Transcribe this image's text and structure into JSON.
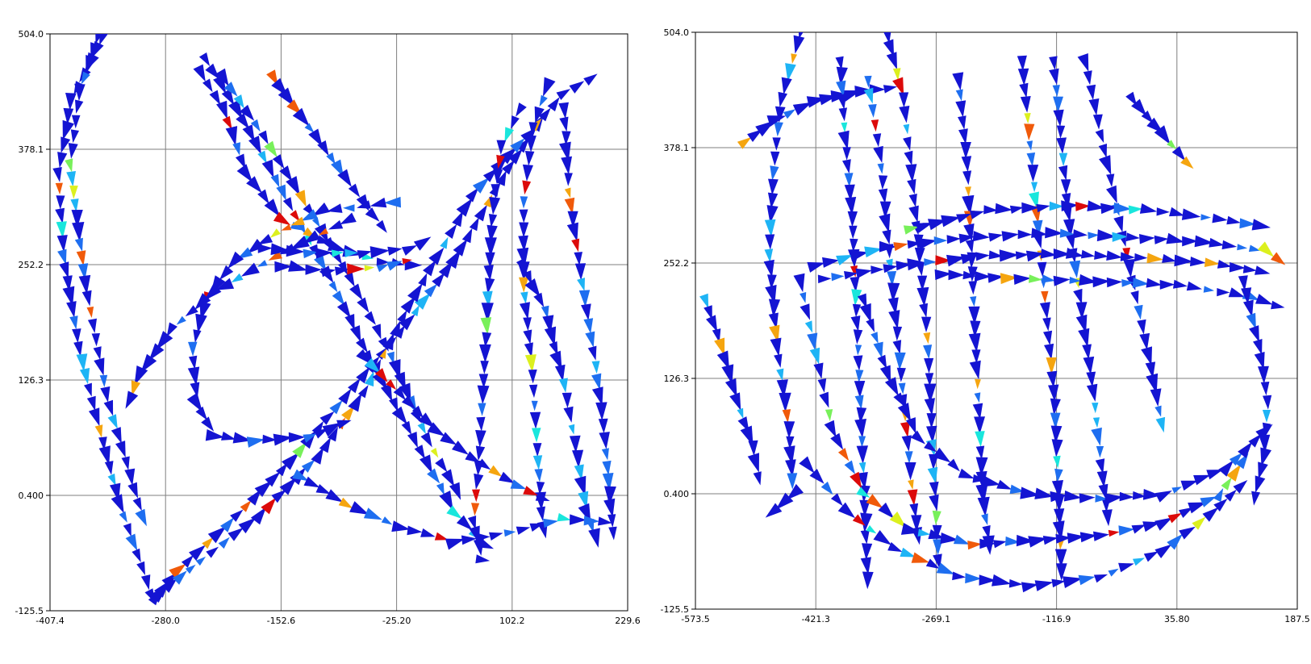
{
  "colors": {
    "background": "#ffffff",
    "grid": "#7f7f7f",
    "axis": "#000000",
    "colormap": [
      "#1414d2",
      "#1e6ef0",
      "#1eb4f5",
      "#19e6dc",
      "#78f05a",
      "#dcf01e",
      "#f5a50f",
      "#f05a0a",
      "#dc0a0a"
    ]
  },
  "chart_data": [
    {
      "type": "scatter",
      "title": "",
      "xlabel": "",
      "ylabel": "",
      "xlim": [
        -407.4,
        229.6
      ],
      "ylim": [
        -125.5,
        504.0
      ],
      "xticks": [
        "-407.4",
        "-280.0",
        "-152.6",
        "-25.20",
        "102.2",
        "229.6"
      ],
      "yticks": [
        "504.0",
        "378.1",
        "252.2",
        "126.3",
        "0.400",
        "-125.5"
      ],
      "grid": true,
      "legend": "none",
      "marker": "arrow glyphs colored by magnitude",
      "trajectories": [
        [
          [
            -350,
            500
          ],
          [
            -385,
            430
          ],
          [
            -398,
            350
          ],
          [
            -392,
            260
          ],
          [
            -375,
            160
          ],
          [
            -352,
            70
          ],
          [
            -330,
            -10
          ],
          [
            -305,
            -80
          ],
          [
            -290,
            -125
          ]
        ],
        [
          [
            -355,
            500
          ],
          [
            -375,
            440
          ],
          [
            -385,
            360
          ],
          [
            -368,
            230
          ],
          [
            -345,
            110
          ],
          [
            -318,
            20
          ],
          [
            -300,
            -40
          ]
        ],
        [
          [
            -290,
            -110
          ],
          [
            -265,
            -80
          ],
          [
            -210,
            -30
          ],
          [
            -140,
            40
          ],
          [
            -80,
            110
          ],
          [
            -20,
            180
          ],
          [
            40,
            260
          ],
          [
            100,
            360
          ],
          [
            140,
            420
          ]
        ],
        [
          [
            -285,
            -105
          ],
          [
            -240,
            -70
          ],
          [
            -175,
            -20
          ],
          [
            -110,
            45
          ],
          [
            -60,
            115
          ],
          [
            -10,
            210
          ],
          [
            60,
            330
          ],
          [
            120,
            395
          ],
          [
            160,
            440
          ],
          [
            205,
            464
          ]
        ],
        [
          [
            -235,
            475
          ],
          [
            -200,
            420
          ],
          [
            -150,
            330
          ],
          [
            -100,
            240
          ],
          [
            -55,
            150
          ],
          [
            -5,
            60
          ],
          [
            40,
            -20
          ],
          [
            75,
            -55
          ],
          [
            95,
            -65
          ]
        ],
        [
          [
            -215,
            455
          ],
          [
            -170,
            390
          ],
          [
            -120,
            310
          ],
          [
            -75,
            235
          ],
          [
            -30,
            150
          ],
          [
            10,
            60
          ],
          [
            50,
            -10
          ]
        ],
        [
          [
            -240,
            460
          ],
          [
            -215,
            420
          ],
          [
            -190,
            350
          ],
          [
            -150,
            300
          ],
          [
            -90,
            270
          ],
          [
            -40,
            255
          ],
          [
            10,
            250
          ]
        ],
        [
          [
            -160,
            455
          ],
          [
            -120,
            400
          ],
          [
            -80,
            345
          ],
          [
            -50,
            305
          ],
          [
            -30,
            280
          ]
        ],
        [
          [
            -30,
            320
          ],
          [
            -110,
            310
          ],
          [
            -160,
            285
          ],
          [
            -205,
            255
          ],
          [
            -235,
            215
          ],
          [
            -250,
            160
          ],
          [
            -245,
            100
          ],
          [
            -225,
            65
          ],
          [
            -180,
            60
          ],
          [
            -120,
            65
          ],
          [
            -70,
            85
          ]
        ],
        [
          [
            -80,
            300
          ],
          [
            -160,
            260
          ],
          [
            -230,
            220
          ],
          [
            -275,
            180
          ],
          [
            -310,
            130
          ],
          [
            -325,
            90
          ]
        ],
        [
          [
            -170,
            270
          ],
          [
            -120,
            265
          ],
          [
            -60,
            265
          ],
          [
            -10,
            270
          ],
          [
            20,
            285
          ]
        ],
        [
          [
            -150,
            250
          ],
          [
            -100,
            245
          ],
          [
            -40,
            250
          ],
          [
            0,
            260
          ]
        ],
        [
          [
            110,
            420
          ],
          [
            90,
            380
          ],
          [
            80,
            300
          ],
          [
            75,
            200
          ],
          [
            70,
            110
          ],
          [
            65,
            30
          ],
          [
            60,
            -30
          ],
          [
            70,
            -70
          ],
          [
            90,
            -75
          ]
        ],
        [
          [
            140,
            445
          ],
          [
            125,
            400
          ],
          [
            115,
            320
          ],
          [
            115,
            230
          ],
          [
            125,
            130
          ],
          [
            130,
            50
          ],
          [
            135,
            -20
          ],
          [
            140,
            -55
          ]
        ],
        [
          [
            160,
            420
          ],
          [
            165,
            330
          ],
          [
            180,
            230
          ],
          [
            195,
            140
          ],
          [
            205,
            60
          ],
          [
            210,
            0
          ],
          [
            215,
            -55
          ]
        ],
        [
          [
            115,
            250
          ],
          [
            140,
            200
          ],
          [
            160,
            120
          ],
          [
            175,
            40
          ],
          [
            185,
            -20
          ],
          [
            200,
            -60
          ]
        ],
        [
          [
            -130,
            20
          ],
          [
            -80,
            -10
          ],
          [
            -20,
            -35
          ],
          [
            40,
            -50
          ],
          [
            100,
            -40
          ],
          [
            160,
            -25
          ],
          [
            220,
            -30
          ]
        ],
        [
          [
            -60,
            150
          ],
          [
            -20,
            110
          ],
          [
            20,
            70
          ],
          [
            60,
            40
          ],
          [
            110,
            10
          ],
          [
            150,
            -10
          ]
        ]
      ]
    },
    {
      "type": "scatter",
      "title": "",
      "xlabel": "",
      "ylabel": "",
      "xlim": [
        -573.5,
        187.5
      ],
      "ylim": [
        -125.5,
        504.0
      ],
      "xticks": [
        "-573.5",
        "-421.3",
        "-269.1",
        "-116.9",
        "35.80",
        "187.5"
      ],
      "yticks": [
        "504.0",
        "378.1",
        "252.2",
        "126.3",
        "0.400",
        "-125.5"
      ],
      "grid": true,
      "legend": "none",
      "marker": "arrow glyphs colored by magnitude",
      "trajectories": [
        [
          [
            -440,
            505
          ],
          [
            -465,
            430
          ],
          [
            -475,
            350
          ],
          [
            -480,
            260
          ],
          [
            -470,
            160
          ],
          [
            -455,
            70
          ],
          [
            -450,
            0
          ],
          [
            -490,
            -30
          ]
        ],
        [
          [
            -330,
            500
          ],
          [
            -310,
            430
          ],
          [
            -300,
            350
          ],
          [
            -290,
            260
          ],
          [
            -280,
            170
          ],
          [
            -275,
            80
          ],
          [
            -270,
            -10
          ],
          [
            -265,
            -90
          ]
        ],
        [
          [
            -510,
            385
          ],
          [
            -470,
            410
          ],
          [
            -420,
            430
          ],
          [
            -360,
            440
          ],
          [
            -310,
            445
          ]
        ],
        [
          [
            -390,
            470
          ],
          [
            -385,
            400
          ],
          [
            -375,
            300
          ],
          [
            -370,
            200
          ],
          [
            -365,
            100
          ],
          [
            -360,
            0
          ],
          [
            -355,
            -110
          ]
        ],
        [
          [
            -355,
            450
          ],
          [
            -340,
            370
          ],
          [
            -330,
            280
          ],
          [
            -320,
            190
          ],
          [
            -310,
            100
          ],
          [
            -300,
            10
          ],
          [
            -290,
            -60
          ]
        ],
        [
          [
            -240,
            450
          ],
          [
            -230,
            360
          ],
          [
            -225,
            270
          ],
          [
            -220,
            180
          ],
          [
            -215,
            90
          ],
          [
            -210,
            0
          ],
          [
            -200,
            -70
          ]
        ],
        [
          [
            -160,
            470
          ],
          [
            -150,
            380
          ],
          [
            -140,
            290
          ],
          [
            -130,
            200
          ],
          [
            -120,
            110
          ],
          [
            -115,
            20
          ],
          [
            -110,
            -100
          ]
        ],
        [
          [
            -120,
            470
          ],
          [
            -110,
            380
          ],
          [
            -100,
            290
          ],
          [
            -85,
            200
          ],
          [
            -70,
            110
          ],
          [
            -60,
            30
          ],
          [
            -50,
            -40
          ]
        ],
        [
          [
            -80,
            470
          ],
          [
            -60,
            390
          ],
          [
            -40,
            310
          ],
          [
            -20,
            230
          ],
          [
            0,
            150
          ],
          [
            20,
            60
          ]
        ],
        [
          [
            -420,
            250
          ],
          [
            -330,
            270
          ],
          [
            -230,
            280
          ],
          [
            -120,
            285
          ],
          [
            -20,
            280
          ],
          [
            70,
            275
          ],
          [
            150,
            265
          ],
          [
            180,
            245
          ]
        ],
        [
          [
            -410,
            235
          ],
          [
            -310,
            250
          ],
          [
            -210,
            260
          ],
          [
            -110,
            262
          ],
          [
            -10,
            258
          ],
          [
            80,
            252
          ],
          [
            160,
            240
          ]
        ],
        [
          [
            -300,
            290
          ],
          [
            -200,
            310
          ],
          [
            -100,
            315
          ],
          [
            0,
            310
          ],
          [
            90,
            300
          ],
          [
            160,
            290
          ]
        ],
        [
          [
            -260,
            240
          ],
          [
            -160,
            235
          ],
          [
            -60,
            232
          ],
          [
            40,
            228
          ],
          [
            130,
            215
          ],
          [
            180,
            200
          ]
        ],
        [
          [
            -440,
            230
          ],
          [
            -420,
            150
          ],
          [
            -400,
            70
          ],
          [
            -360,
            0
          ],
          [
            -300,
            -40
          ],
          [
            -220,
            -55
          ],
          [
            -140,
            -50
          ],
          [
            -60,
            -45
          ],
          [
            20,
            -30
          ],
          [
            90,
            0
          ],
          [
            130,
            50
          ]
        ],
        [
          [
            -360,
            210
          ],
          [
            -330,
            130
          ],
          [
            -290,
            60
          ],
          [
            -230,
            20
          ],
          [
            -150,
            0
          ],
          [
            -60,
            -5
          ],
          [
            20,
            0
          ],
          [
            100,
            30
          ],
          [
            160,
            80
          ]
        ],
        [
          [
            -430,
            30
          ],
          [
            -380,
            -20
          ],
          [
            -320,
            -60
          ],
          [
            -240,
            -90
          ],
          [
            -150,
            -100
          ],
          [
            -60,
            -90
          ],
          [
            20,
            -60
          ],
          [
            80,
            -20
          ],
          [
            130,
            20
          ]
        ],
        [
          [
            -560,
            210
          ],
          [
            -540,
            160
          ],
          [
            -520,
            100
          ],
          [
            -500,
            50
          ],
          [
            -490,
            0
          ]
        ],
        [
          [
            -20,
            430
          ],
          [
            10,
            400
          ],
          [
            40,
            370
          ],
          [
            60,
            350
          ]
        ],
        [
          [
            120,
            230
          ],
          [
            140,
            160
          ],
          [
            150,
            100
          ],
          [
            145,
            40
          ],
          [
            130,
            -20
          ]
        ]
      ]
    }
  ]
}
